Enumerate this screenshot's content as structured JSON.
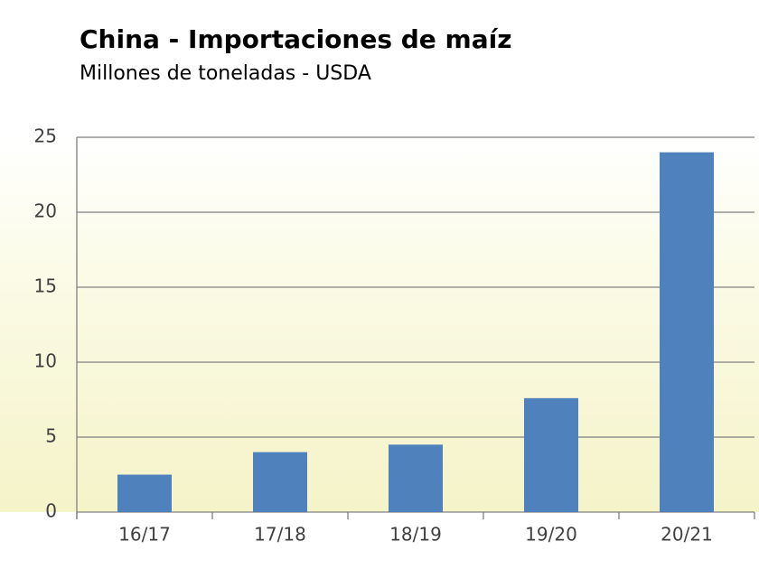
{
  "chart_data": {
    "type": "bar",
    "title": "China - Importaciones de maíz",
    "subtitle": "Millones de toneladas - USDA",
    "categories": [
      "16/17",
      "17/18",
      "18/19",
      "19/20",
      "20/21"
    ],
    "values": [
      2.5,
      4.0,
      4.5,
      7.6,
      24.0
    ],
    "color": "#4f81bd",
    "ylim": [
      0,
      25
    ],
    "yticks": [
      0,
      5,
      10,
      15,
      20,
      25
    ],
    "grid": true
  }
}
